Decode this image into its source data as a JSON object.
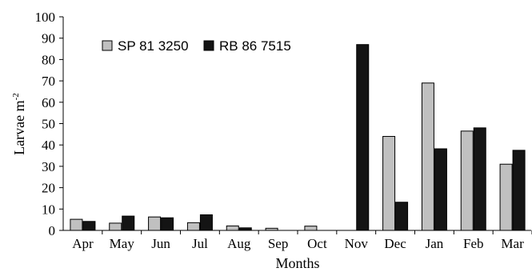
{
  "chart_data": {
    "type": "bar",
    "categories": [
      "Apr",
      "May",
      "Jun",
      "Jul",
      "Aug",
      "Sep",
      "Oct",
      "Nov",
      "Dec",
      "Jan",
      "Feb",
      "Mar"
    ],
    "series": [
      {
        "name": "SP 81 3250",
        "color": "#c0c0c0",
        "values": [
          5.2,
          3.4,
          6.3,
          3.6,
          2.1,
          1.0,
          2.0,
          0,
          44.0,
          69.0,
          46.5,
          31.0
        ]
      },
      {
        "name": "RB 86 7515",
        "color": "#141414",
        "values": [
          4.2,
          6.7,
          5.9,
          7.3,
          1.2,
          0,
          0,
          87.0,
          13.2,
          38.2,
          48.0,
          37.5
        ]
      }
    ],
    "xlabel": "Months",
    "ylabel_main": "Larvae m",
    "ylabel_sup": "-2",
    "ylim": [
      0,
      100
    ],
    "yticks": [
      "0",
      "10",
      "20",
      "30",
      "40",
      "50",
      "60",
      "70",
      "80",
      "90",
      "100"
    ],
    "legend_position": "top-left",
    "grid": false
  }
}
